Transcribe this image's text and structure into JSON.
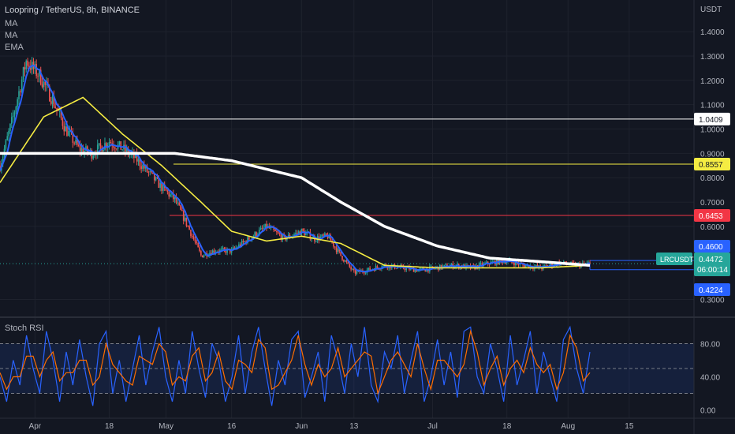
{
  "header": {
    "symbol_title": "Loopring / TetherUS, 8h, BINANCE",
    "indicators": [
      "MA",
      "MA",
      "EMA"
    ]
  },
  "price_axis": {
    "unit": "USDT",
    "ticks": [
      "1.4000",
      "1.3000",
      "1.2000",
      "1.1000",
      "1.0000",
      "0.9000",
      "0.8000",
      "0.7000",
      "0.6000",
      "0.3000"
    ]
  },
  "time_axis": {
    "ticks": [
      "Apr",
      "18",
      "May",
      "16",
      "Jun",
      "13",
      "Jul",
      "18",
      "Aug",
      "15"
    ]
  },
  "price_labels": [
    {
      "text": "1.0409",
      "bg": "#ffffff",
      "fg": "#131722"
    },
    {
      "text": "0.8557",
      "bg": "#f5ec42",
      "fg": "#131722"
    },
    {
      "text": "0.6453",
      "bg": "#f23645",
      "fg": "#ffffff"
    },
    {
      "text": "0.4600",
      "bg": "#2962ff",
      "fg": "#ffffff"
    },
    {
      "text": "0.4224",
      "bg": "#2962ff",
      "fg": "#ffffff"
    }
  ],
  "current_price": {
    "symbol": "LRCUSDT",
    "price": "0.4472",
    "countdown": "06:00:14",
    "bg": "#26a69a"
  },
  "oscillator": {
    "title": "Stoch RSI",
    "ticks": [
      "80.00",
      "40.00",
      "0.00"
    ]
  },
  "colors": {
    "background": "#131722",
    "grid": "#1e222d",
    "up_candle": "#26a69a",
    "down_candle": "#ef5350",
    "ma_fast": "#2962ff",
    "ma_slow": "#ffffff",
    "ema": "#f5ec42",
    "stoch_k": "#2962ff",
    "stoch_d": "#ff6d00",
    "rsi_band": "#2962ff"
  },
  "chart_data": {
    "type": "line",
    "price_ylim": [
      0.24,
      1.53
    ],
    "series": [
      {
        "kind": "price",
        "x": [
          "Mar 24",
          "Mar 27",
          "Mar 30",
          "Apr 2",
          "Apr 5",
          "Apr 8",
          "Apr 11",
          "Apr 14",
          "Apr 18",
          "Apr 21",
          "Apr 24",
          "Apr 27",
          "Apr 30",
          "May 3",
          "May 6",
          "May 9",
          "May 12",
          "May 16",
          "May 20",
          "May 24",
          "May 28",
          "Jun 1",
          "Jun 4",
          "Jun 7",
          "Jun 10",
          "Jun 13",
          "Jun 16",
          "Jun 20",
          "Jun 24",
          "Jun 28",
          "Jul 2",
          "Jul 6",
          "Jul 10",
          "Jul 14",
          "Jul 18",
          "Jul 22",
          "Jul 26",
          "Jul 30",
          "Aug 3",
          "Aug 6"
        ],
        "values": [
          0.85,
          1.05,
          1.28,
          1.22,
          1.12,
          1.0,
          0.92,
          0.9,
          0.95,
          0.92,
          0.88,
          0.82,
          0.76,
          0.71,
          0.6,
          0.48,
          0.5,
          0.5,
          0.55,
          0.6,
          0.55,
          0.58,
          0.55,
          0.56,
          0.48,
          0.41,
          0.42,
          0.44,
          0.43,
          0.42,
          0.43,
          0.44,
          0.43,
          0.45,
          0.46,
          0.44,
          0.43,
          0.45,
          0.44,
          0.4472
        ]
      },
      {
        "name": "EMA",
        "x": [
          "Mar 24",
          "Apr 3",
          "Apr 12",
          "Apr 21",
          "Apr 30",
          "May 9",
          "May 16",
          "May 24",
          "Jun 1",
          "Jun 10",
          "Jun 20",
          "Jul 2",
          "Jul 14",
          "Jul 26",
          "Aug 6"
        ],
        "values": [
          0.78,
          1.05,
          1.13,
          0.98,
          0.85,
          0.7,
          0.58,
          0.54,
          0.56,
          0.53,
          0.44,
          0.43,
          0.43,
          0.43,
          0.44
        ]
      },
      {
        "name": "MA",
        "x": [
          "Mar 24",
          "Apr 8",
          "Apr 21",
          "May 3",
          "May 16",
          "Jun 1",
          "Jun 10",
          "Jun 20",
          "Jul 2",
          "Jul 14",
          "Jul 26",
          "Aug 6"
        ],
        "values": [
          0.9,
          0.9,
          0.9,
          0.9,
          0.87,
          0.8,
          0.7,
          0.6,
          0.52,
          0.47,
          0.455,
          0.44
        ]
      }
    ],
    "stoch_rsi": {
      "ylim": [
        -10,
        110
      ],
      "bands": [
        20,
        50,
        80
      ],
      "k": [
        40,
        10,
        60,
        30,
        90,
        50,
        20,
        95,
        60,
        10,
        70,
        30,
        85,
        40,
        5,
        80,
        95,
        20,
        60,
        10,
        50,
        90,
        30,
        70,
        100,
        40,
        10,
        60,
        20,
        95,
        50,
        15,
        80,
        60,
        10,
        40,
        90,
        20,
        70,
        100,
        50,
        5,
        60,
        30,
        85,
        95,
        15,
        40,
        70,
        10,
        90,
        60,
        20,
        80,
        40,
        100,
        30,
        10,
        70,
        50,
        90,
        20,
        60,
        95,
        10,
        40,
        85,
        30,
        70,
        15,
        95,
        100,
        40,
        20,
        80,
        50,
        10,
        90,
        30,
        60,
        95,
        20,
        70,
        40,
        10,
        85,
        100,
        50,
        20,
        70
      ],
      "d": [
        45,
        25,
        40,
        40,
        65,
        65,
        40,
        60,
        70,
        35,
        45,
        45,
        60,
        60,
        30,
        40,
        80,
        55,
        45,
        35,
        30,
        65,
        60,
        55,
        80,
        70,
        30,
        40,
        35,
        65,
        75,
        35,
        45,
        70,
        35,
        25,
        60,
        55,
        45,
        85,
        75,
        25,
        30,
        45,
        60,
        90,
        55,
        30,
        55,
        40,
        50,
        75,
        40,
        50,
        60,
        70,
        65,
        20,
        40,
        60,
        70,
        55,
        40,
        80,
        50,
        25,
        60,
        60,
        50,
        40,
        55,
        95,
        70,
        30,
        50,
        65,
        30,
        50,
        60,
        45,
        75,
        55,
        45,
        55,
        25,
        45,
        90,
        75,
        35,
        45
      ]
    }
  }
}
